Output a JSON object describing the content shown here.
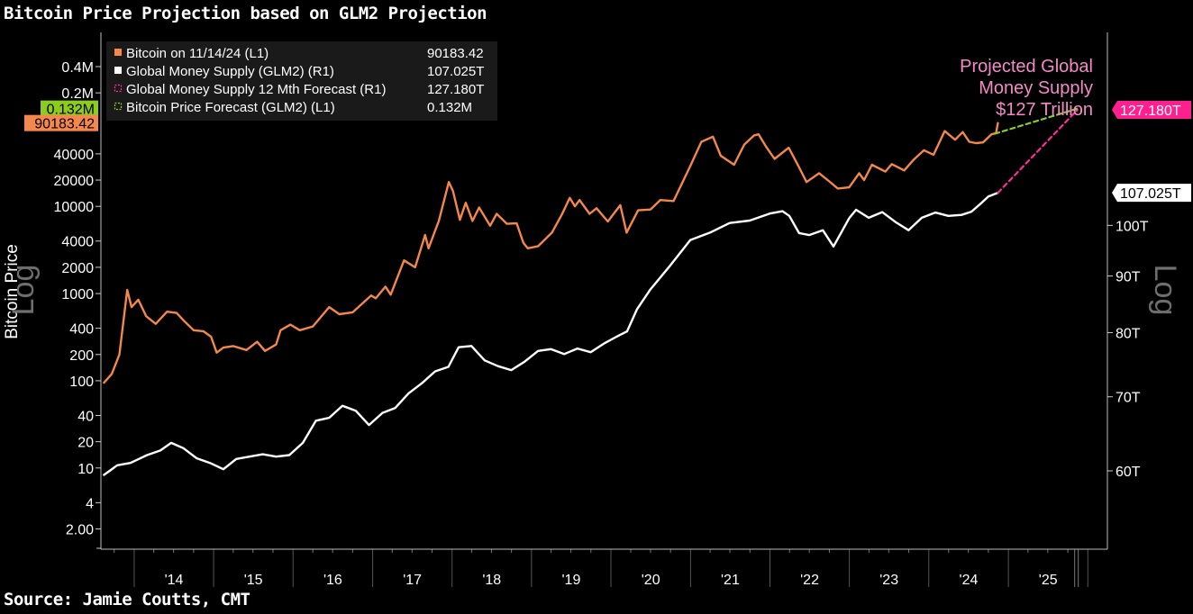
{
  "header": {
    "title": "Bitcoin Price Projection based on GLM2 Projection"
  },
  "footer": {
    "source": "Source: Jamie Coutts, CMT"
  },
  "colors": {
    "bitcoin": "#f4874b",
    "glm2": "#ffffff",
    "glm2_forecast": "#ff2e9a",
    "btc_forecast": "#8ccc2e",
    "annotation": "#f28ac8",
    "badge_green": "#8ccc1e",
    "badge_magenta": "#ff1f8f"
  },
  "chart_data": {
    "type": "line",
    "title": "Bitcoin Price Projection based on GLM2 Projection",
    "x_tick_labels": [
      "'14",
      "'15",
      "'16",
      "'17",
      "'18",
      "'19",
      "'20",
      "'21",
      "'22",
      "'23",
      "'24",
      "'25"
    ],
    "xlim": [
      "2013-08-01",
      "2026-04-01"
    ],
    "left_axis": {
      "label": "Bitcoin Price",
      "scale_word": "Log",
      "scale": "log",
      "ticks": [
        {
          "v": 2,
          "t": "2.00"
        },
        {
          "v": 4,
          "t": "4"
        },
        {
          "v": 10,
          "t": "10"
        },
        {
          "v": 20,
          "t": "20"
        },
        {
          "v": 40,
          "t": "40"
        },
        {
          "v": 100,
          "t": "100"
        },
        {
          "v": 200,
          "t": "200"
        },
        {
          "v": 400,
          "t": "400"
        },
        {
          "v": 1000,
          "t": "1000"
        },
        {
          "v": 2000,
          "t": "2000"
        },
        {
          "v": 4000,
          "t": "4000"
        },
        {
          "v": 10000,
          "t": "10000"
        },
        {
          "v": 20000,
          "t": "20000"
        },
        {
          "v": 40000,
          "t": "40000"
        },
        {
          "v": 200000,
          "t": "0.2M"
        },
        {
          "v": 400000,
          "t": "0.4M"
        }
      ],
      "ylim": [
        1,
        500000
      ]
    },
    "right_axis": {
      "scale_word": "Log",
      "scale": "log",
      "ticks": [
        {
          "v": 60,
          "t": "60T"
        },
        {
          "v": 70,
          "t": "70T"
        },
        {
          "v": 80,
          "t": "80T"
        },
        {
          "v": 90,
          "t": "90T"
        },
        {
          "v": 100,
          "t": "100T"
        }
      ],
      "ylim": [
        55.4,
        131.3
      ]
    },
    "legend": {
      "placement": "top-left",
      "items": [
        {
          "label": "Bitcoin on 11/14/24 (L1)",
          "value": "90183.42",
          "swatch": "solid",
          "color": "#f4874b"
        },
        {
          "label": "Global Money Supply (GLM2) (R1)",
          "value": "107.025T",
          "swatch": "solid",
          "color": "#ffffff"
        },
        {
          "label": "Global Money Supply 12 Mth Forecast  (R1)",
          "value": "127.180T",
          "swatch": "dashed",
          "color": "#ff2e9a"
        },
        {
          "label": "Bitcoin Price Forecast (GLM2) (L1)",
          "value": "0.132M",
          "swatch": "dashed",
          "color": "#8ccc2e"
        }
      ]
    },
    "badges": [
      {
        "text": "0.132M",
        "axis": "left",
        "value": 132000,
        "color": "#8ccc1e",
        "text_color": "#000000"
      },
      {
        "text": "90183.42",
        "axis": "left",
        "value": 90183.42,
        "color": "#f4874b",
        "text_color": "#000000"
      },
      {
        "text": "127.180T",
        "axis": "right",
        "value": 127.18,
        "color": "#ff1f8f",
        "text_color": "#ffffff"
      },
      {
        "text": "107.025T",
        "axis": "right",
        "value": 107.025,
        "color": "#ffffff",
        "text_color": "#000000"
      }
    ],
    "annotation": [
      "Projected Global",
      "Money Supply",
      "$127 Trillion"
    ],
    "series": [
      {
        "name": "Bitcoin on 11/14/24 (L1)",
        "axis": "left",
        "color": "#f4874b",
        "points": [
          [
            "2013-08-15",
            95
          ],
          [
            "2013-09-20",
            120
          ],
          [
            "2013-10-25",
            200
          ],
          [
            "2013-11-30",
            1100
          ],
          [
            "2013-12-20",
            700
          ],
          [
            "2014-01-20",
            850
          ],
          [
            "2014-02-25",
            550
          ],
          [
            "2014-04-10",
            450
          ],
          [
            "2014-06-01",
            620
          ],
          [
            "2014-07-15",
            600
          ],
          [
            "2014-08-20",
            480
          ],
          [
            "2014-10-01",
            380
          ],
          [
            "2014-11-15",
            370
          ],
          [
            "2014-12-20",
            320
          ],
          [
            "2015-01-15",
            210
          ],
          [
            "2015-02-15",
            240
          ],
          [
            "2015-04-01",
            250
          ],
          [
            "2015-06-01",
            225
          ],
          [
            "2015-07-20",
            280
          ],
          [
            "2015-08-25",
            220
          ],
          [
            "2015-10-15",
            260
          ],
          [
            "2015-11-05",
            380
          ],
          [
            "2015-12-20",
            440
          ],
          [
            "2016-02-01",
            380
          ],
          [
            "2016-04-01",
            420
          ],
          [
            "2016-06-15",
            700
          ],
          [
            "2016-08-01",
            580
          ],
          [
            "2016-10-01",
            610
          ],
          [
            "2016-12-25",
            950
          ],
          [
            "2017-01-15",
            880
          ],
          [
            "2017-03-01",
            1200
          ],
          [
            "2017-03-25",
            970
          ],
          [
            "2017-05-25",
            2400
          ],
          [
            "2017-07-15",
            2000
          ],
          [
            "2017-08-30",
            4700
          ],
          [
            "2017-09-15",
            3300
          ],
          [
            "2017-11-01",
            6800
          ],
          [
            "2017-12-17",
            19000
          ],
          [
            "2018-01-05",
            15000
          ],
          [
            "2018-02-06",
            7000
          ],
          [
            "2018-03-05",
            11000
          ],
          [
            "2018-04-05",
            6800
          ],
          [
            "2018-05-05",
            9700
          ],
          [
            "2018-06-25",
            6000
          ],
          [
            "2018-07-25",
            8200
          ],
          [
            "2018-09-10",
            6300
          ],
          [
            "2018-10-25",
            6400
          ],
          [
            "2018-11-25",
            3800
          ],
          [
            "2018-12-15",
            3300
          ],
          [
            "2019-02-01",
            3500
          ],
          [
            "2019-04-05",
            5000
          ],
          [
            "2019-05-20",
            8000
          ],
          [
            "2019-06-26",
            12500
          ],
          [
            "2019-07-20",
            10000
          ],
          [
            "2019-08-10",
            11800
          ],
          [
            "2019-09-25",
            8200
          ],
          [
            "2019-10-27",
            9500
          ],
          [
            "2019-12-18",
            6700
          ],
          [
            "2020-02-13",
            10300
          ],
          [
            "2020-03-13",
            5000
          ],
          [
            "2020-05-05",
            9000
          ],
          [
            "2020-07-01",
            9200
          ],
          [
            "2020-08-15",
            11800
          ],
          [
            "2020-10-15",
            11500
          ],
          [
            "2020-12-31",
            29000
          ],
          [
            "2021-02-20",
            55000
          ],
          [
            "2021-04-14",
            63000
          ],
          [
            "2021-05-20",
            38000
          ],
          [
            "2021-07-20",
            30000
          ],
          [
            "2021-09-05",
            51000
          ],
          [
            "2021-10-20",
            65000
          ],
          [
            "2021-11-10",
            67000
          ],
          [
            "2021-12-15",
            48000
          ],
          [
            "2022-01-22",
            35000
          ],
          [
            "2022-03-28",
            47000
          ],
          [
            "2022-05-12",
            29000
          ],
          [
            "2022-06-18",
            19000
          ],
          [
            "2022-08-15",
            24000
          ],
          [
            "2022-10-01",
            19300
          ],
          [
            "2022-11-09",
            16000
          ],
          [
            "2022-12-31",
            16500
          ],
          [
            "2023-02-15",
            24000
          ],
          [
            "2023-03-10",
            20000
          ],
          [
            "2023-04-15",
            30000
          ],
          [
            "2023-06-15",
            25000
          ],
          [
            "2023-07-15",
            30500
          ],
          [
            "2023-09-10",
            25800
          ],
          [
            "2023-10-25",
            34500
          ],
          [
            "2023-12-10",
            44000
          ],
          [
            "2024-01-23",
            39000
          ],
          [
            "2024-03-14",
            73000
          ],
          [
            "2024-05-01",
            58000
          ],
          [
            "2024-06-05",
            71000
          ],
          [
            "2024-07-05",
            55000
          ],
          [
            "2024-08-05",
            53000
          ],
          [
            "2024-09-06",
            54000
          ],
          [
            "2024-10-15",
            67000
          ],
          [
            "2024-11-05",
            69000
          ],
          [
            "2024-11-14",
            90183.42
          ]
        ]
      },
      {
        "name": "Global Money Supply (GLM2) (R1)",
        "axis": "right",
        "color": "#ffffff",
        "points": [
          [
            "2013-08-15",
            59.5
          ],
          [
            "2013-10-15",
            60.7
          ],
          [
            "2013-12-15",
            61.0
          ],
          [
            "2014-03-01",
            62.0
          ],
          [
            "2014-05-01",
            62.6
          ],
          [
            "2014-06-20",
            63.6
          ],
          [
            "2014-08-15",
            62.9
          ],
          [
            "2014-10-15",
            61.6
          ],
          [
            "2014-12-15",
            61.0
          ],
          [
            "2015-02-15",
            60.2
          ],
          [
            "2015-04-15",
            61.5
          ],
          [
            "2015-06-15",
            61.8
          ],
          [
            "2015-08-15",
            62.1
          ],
          [
            "2015-10-15",
            61.8
          ],
          [
            "2015-12-15",
            62.0
          ],
          [
            "2016-02-15",
            63.6
          ],
          [
            "2016-04-15",
            66.6
          ],
          [
            "2016-06-15",
            67.0
          ],
          [
            "2016-08-15",
            68.7
          ],
          [
            "2016-10-15",
            68.0
          ],
          [
            "2016-12-15",
            66.0
          ],
          [
            "2017-02-15",
            67.7
          ],
          [
            "2017-04-15",
            68.4
          ],
          [
            "2017-06-15",
            70.5
          ],
          [
            "2017-08-15",
            72.0
          ],
          [
            "2017-10-15",
            73.8
          ],
          [
            "2017-12-15",
            74.5
          ],
          [
            "2018-01-31",
            77.6
          ],
          [
            "2018-03-31",
            77.8
          ],
          [
            "2018-05-31",
            75.5
          ],
          [
            "2018-07-31",
            74.6
          ],
          [
            "2018-09-30",
            74.0
          ],
          [
            "2018-11-30",
            75.3
          ],
          [
            "2019-01-31",
            77.0
          ],
          [
            "2019-03-31",
            77.3
          ],
          [
            "2019-05-31",
            76.5
          ],
          [
            "2019-07-31",
            77.4
          ],
          [
            "2019-09-30",
            76.8
          ],
          [
            "2019-11-30",
            78.2
          ],
          [
            "2020-01-31",
            79.4
          ],
          [
            "2020-03-15",
            80.2
          ],
          [
            "2020-04-30",
            84.0
          ],
          [
            "2020-06-30",
            87.5
          ],
          [
            "2020-09-30",
            92.0
          ],
          [
            "2020-12-31",
            97.0
          ],
          [
            "2021-03-31",
            98.5
          ],
          [
            "2021-06-30",
            100.5
          ],
          [
            "2021-09-30",
            101.0
          ],
          [
            "2021-12-31",
            102.5
          ],
          [
            "2022-02-28",
            103.0
          ],
          [
            "2022-03-31",
            102.0
          ],
          [
            "2022-05-15",
            98.4
          ],
          [
            "2022-06-30",
            98.0
          ],
          [
            "2022-09-01",
            99.0
          ],
          [
            "2022-10-20",
            95.7
          ],
          [
            "2022-12-31",
            101.5
          ],
          [
            "2023-02-01",
            103.3
          ],
          [
            "2023-03-31",
            101.6
          ],
          [
            "2023-06-01",
            102.8
          ],
          [
            "2023-08-01",
            100.7
          ],
          [
            "2023-09-30",
            99.0
          ],
          [
            "2023-11-30",
            101.6
          ],
          [
            "2024-01-31",
            102.7
          ],
          [
            "2024-03-31",
            102.0
          ],
          [
            "2024-05-31",
            102.2
          ],
          [
            "2024-07-15",
            102.9
          ],
          [
            "2024-08-31",
            104.8
          ],
          [
            "2024-10-01",
            106.2
          ],
          [
            "2024-11-14",
            107.025
          ]
        ]
      },
      {
        "name": "Global Money Supply 12 Mth Forecast  (R1)",
        "axis": "right",
        "color": "#ff2e9a",
        "dashed": true,
        "points": [
          [
            "2024-11-14",
            107.025
          ],
          [
            "2025-11-14",
            127.18
          ]
        ]
      },
      {
        "name": "Bitcoin Price Forecast (GLM2) (L1)",
        "axis": "left",
        "color": "#8ccc2e",
        "dashed": true,
        "points": [
          [
            "2024-10-31",
            68000
          ],
          [
            "2025-11-14",
            132000
          ]
        ]
      }
    ]
  }
}
